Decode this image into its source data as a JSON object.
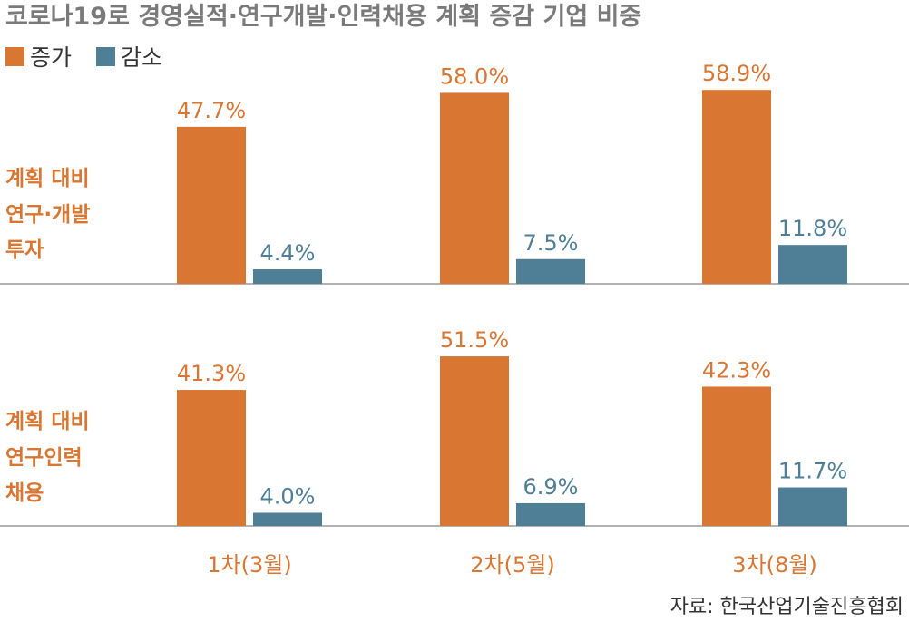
{
  "title": "코로나19로 경영실적·연구개발·인력채용 계획 증감 기업 비중",
  "legend": [
    {
      "label": "증가",
      "color": "#D97632"
    },
    {
      "label": "감소",
      "color": "#4E7F97"
    }
  ],
  "source": "자료: 한국산업기술진흥협회",
  "colors": {
    "increase": "#D97632",
    "decrease": "#4E7F97",
    "axis": "#999999"
  },
  "chart_data": [
    {
      "type": "bar",
      "row_label": [
        "계획 대비",
        "연구·개발",
        "투자"
      ],
      "categories": [
        "1차(3월)",
        "2차(5월)",
        "3차(8월)"
      ],
      "series": [
        {
          "name": "증가",
          "values": [
            47.7,
            58.0,
            58.9
          ],
          "labels": [
            "47.7%",
            "58.0%",
            "58.9%"
          ]
        },
        {
          "name": "감소",
          "values": [
            4.4,
            7.5,
            11.8
          ],
          "labels": [
            "4.4%",
            "7.5%",
            "11.8%"
          ]
        }
      ],
      "ylim": [
        0,
        62
      ]
    },
    {
      "type": "bar",
      "row_label": [
        "계획 대비",
        "연구인력",
        "채용"
      ],
      "categories": [
        "1차(3월)",
        "2차(5월)",
        "3차(8월)"
      ],
      "series": [
        {
          "name": "증가",
          "values": [
            41.3,
            51.5,
            42.3
          ],
          "labels": [
            "41.3%",
            "51.5%",
            "42.3%"
          ]
        },
        {
          "name": "감소",
          "values": [
            4.0,
            6.9,
            11.7
          ],
          "labels": [
            "4.0%",
            "6.9%",
            "11.7%"
          ]
        }
      ],
      "ylim": [
        0,
        62
      ]
    }
  ]
}
